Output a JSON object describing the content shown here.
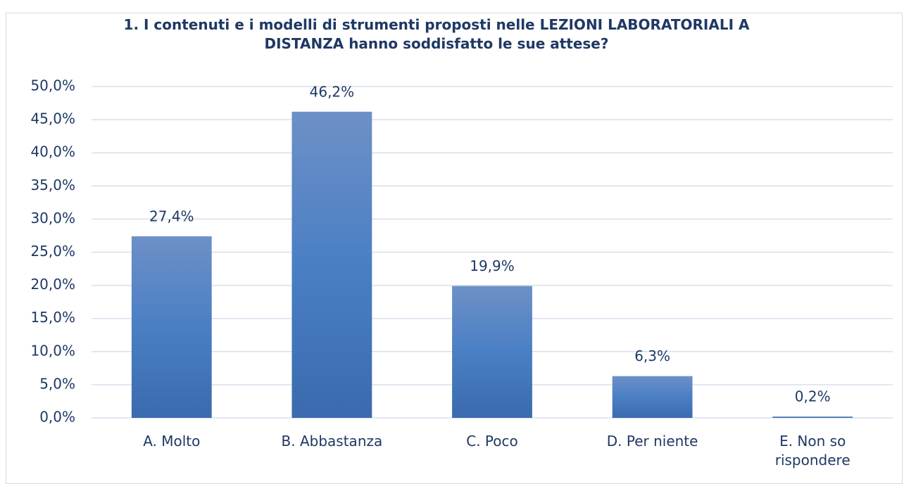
{
  "chart_data": {
    "type": "bar",
    "title": "1.   I contenuti  e i modelli di strumenti proposti  nelle LEZIONI LABORATORIALI A DISTANZA hanno soddisfatto le sue attese?",
    "categories": [
      "A. Molto",
      "B. Abbastanza",
      "C. Poco",
      "D. Per niente",
      "E. Non so rispondere"
    ],
    "values": [
      27.4,
      46.2,
      19.9,
      6.3,
      0.2
    ],
    "value_labels": [
      "27,4%",
      "46,2%",
      "19,9%",
      "6,3%",
      "0,2%"
    ],
    "color": "#4a7bbf",
    "ylim": [
      0,
      50
    ],
    "yticks": [
      {
        "value": 0,
        "label": "0,0%"
      },
      {
        "value": 5,
        "label": "5,0%"
      },
      {
        "value": 10,
        "label": "10,0%"
      },
      {
        "value": 15,
        "label": "15,0%"
      },
      {
        "value": 20,
        "label": "20,0%"
      },
      {
        "value": 25,
        "label": "25,0%"
      },
      {
        "value": 30,
        "label": "30,0%"
      },
      {
        "value": 35,
        "label": "35,0%"
      },
      {
        "value": 40,
        "label": "40,0%"
      },
      {
        "value": 45,
        "label": "45,0%"
      },
      {
        "value": 50,
        "label": "50,0%"
      }
    ],
    "grid": true
  }
}
